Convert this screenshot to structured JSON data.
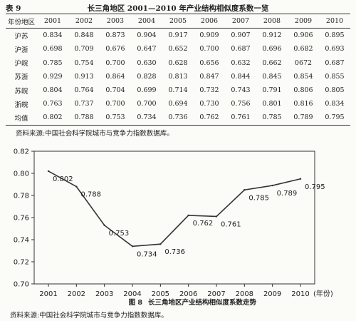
{
  "table": {
    "number": "表 9",
    "caption": "长三角地区 2001—2010 年产业结构相似度系数一览",
    "corner_header": "年份地区",
    "years": [
      "2001",
      "2002",
      "2003",
      "2004",
      "2005",
      "2006",
      "2007",
      "2008",
      "2009",
      "2010"
    ],
    "rows": [
      {
        "region": "沪苏",
        "values": [
          "0.834",
          "0.848",
          "0.873",
          "0.904",
          "0.917",
          "0.909",
          "0.907",
          "0.912",
          "0.906",
          "0.895"
        ]
      },
      {
        "region": "沪浙",
        "values": [
          "0.698",
          "0.709",
          "0.676",
          "0.647",
          "0.652",
          "0.700",
          "0.687",
          "0.696",
          "0.682",
          "0.693"
        ]
      },
      {
        "region": "沪皖",
        "values": [
          "0.785",
          "0.754",
          "0.700",
          "0.630",
          "0.628",
          "0.656",
          "0.632",
          "0.662",
          "0672",
          "0.687"
        ]
      },
      {
        "region": "苏浙",
        "values": [
          "0.929",
          "0.913",
          "0.864",
          "0.828",
          "0.813",
          "0.847",
          "0.844",
          "0.845",
          "0.854",
          "0.855"
        ]
      },
      {
        "region": "苏皖",
        "values": [
          "0.804",
          "0.764",
          "0.704",
          "0.699",
          "0.714",
          "0.732",
          "0.743",
          "0.791",
          "0.806",
          "0.805"
        ]
      },
      {
        "region": "浙皖",
        "values": [
          "0.763",
          "0.737",
          "0.700",
          "0.700",
          "0.694",
          "0.730",
          "0.756",
          "0.801",
          "0.816",
          "0.834"
        ]
      },
      {
        "region": "均值",
        "values": [
          "0.802",
          "0.788",
          "0.753",
          "0.734",
          "0.736",
          "0.762",
          "0.761",
          "0.785",
          "0.789",
          "0.795"
        ]
      }
    ],
    "source": "资料来源:中国社会科学院城市与竞争力指数数据库。"
  },
  "chart_data": {
    "type": "line",
    "x": [
      "2001",
      "2002",
      "2003",
      "2004",
      "2005",
      "2006",
      "2007",
      "2008",
      "2009",
      "2010"
    ],
    "values": [
      0.802,
      0.788,
      0.753,
      0.734,
      0.736,
      0.762,
      0.761,
      0.785,
      0.789,
      0.795
    ],
    "data_labels": [
      "0.802",
      "0.788",
      "0.753",
      "0.734",
      "0.736",
      "0.762",
      "0.761",
      "0.785",
      "0.789",
      "0.795"
    ],
    "ylim": [
      0.7,
      0.82
    ],
    "yticks": [
      "0.82",
      "0.80",
      "0.78",
      "0.76",
      "0.74",
      "0.72",
      "0.70"
    ],
    "x_unit": "(年份)",
    "figure_number": "图 8",
    "title": "长三角地区产业结构相似度系数走势",
    "grid": false,
    "line_color": "#333333"
  },
  "chart_source": "资料来源:中国社会科学院城市与竞争力指数数据库。"
}
